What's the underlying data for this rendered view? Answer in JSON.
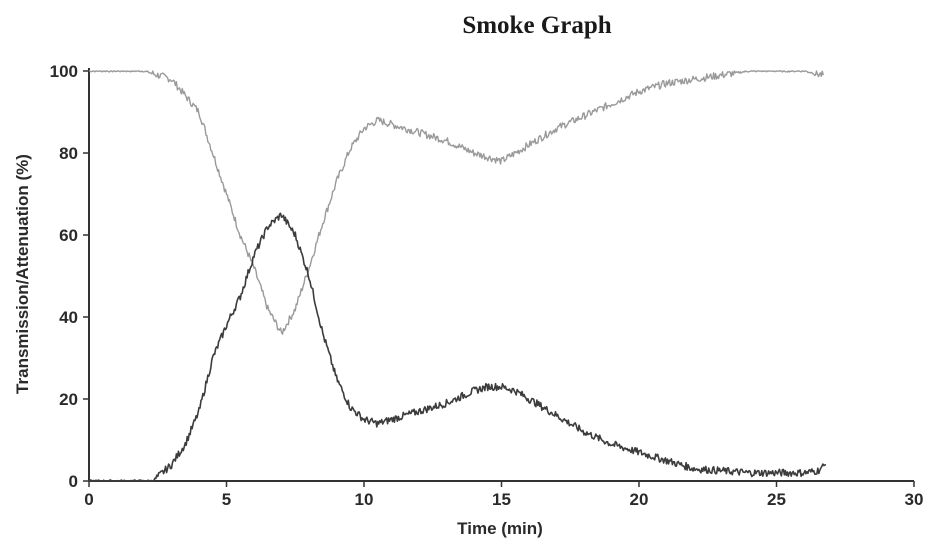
{
  "chart_data": {
    "type": "line",
    "title": "Smoke Graph",
    "xlabel": "Time (min)",
    "ylabel": "Transmission/Attenuation (%)",
    "xlim": [
      0,
      30
    ],
    "ylim": [
      0,
      100
    ],
    "x_ticks": [
      0,
      5,
      10,
      15,
      20,
      25,
      30
    ],
    "y_ticks": [
      0,
      20,
      40,
      60,
      80,
      100
    ],
    "grid": false,
    "legend": "none",
    "series": [
      {
        "color": "#9a9a9a",
        "x": [
          0.0,
          2.0,
          3.0,
          4.0,
          4.5,
          5.0,
          5.5,
          6.0,
          6.5,
          7.0,
          7.5,
          8.0,
          8.5,
          9.0,
          9.5,
          10.0,
          10.5,
          11.0,
          12.0,
          13.0,
          14.0,
          15.0,
          16.0,
          17.0,
          18.0,
          19.0,
          20.0,
          21.0,
          22.0,
          23.0,
          24.0,
          25.0,
          26.0,
          26.7
        ],
        "values": [
          100,
          100,
          98,
          90,
          80,
          70,
          60,
          52,
          42,
          36,
          42,
          52,
          63,
          73,
          81,
          86,
          88,
          87,
          85,
          83,
          80,
          78,
          82,
          86,
          89,
          92,
          95,
          97,
          98,
          99,
          100,
          100,
          100,
          99
        ]
      },
      {
        "color": "#3c3c3c",
        "x": [
          0.0,
          2.0,
          2.3,
          2.5,
          3.0,
          3.5,
          4.0,
          4.5,
          5.0,
          5.5,
          6.0,
          6.5,
          7.0,
          7.5,
          8.0,
          8.5,
          9.0,
          9.5,
          10.0,
          10.5,
          11.0,
          12.0,
          13.0,
          14.0,
          14.5,
          15.0,
          15.5,
          16.0,
          17.0,
          18.0,
          19.0,
          20.0,
          21.0,
          22.0,
          23.0,
          24.0,
          25.0,
          26.0,
          26.5,
          26.8
        ],
        "values": [
          0,
          0,
          0,
          1,
          4,
          9,
          17,
          30,
          38,
          45,
          55,
          62,
          65,
          60,
          50,
          36,
          25,
          18,
          15,
          14,
          15,
          17,
          19,
          22,
          23,
          23,
          22,
          20,
          16,
          12,
          9,
          7,
          5,
          3,
          2.5,
          2,
          2,
          2,
          2.5,
          4
        ]
      }
    ]
  }
}
